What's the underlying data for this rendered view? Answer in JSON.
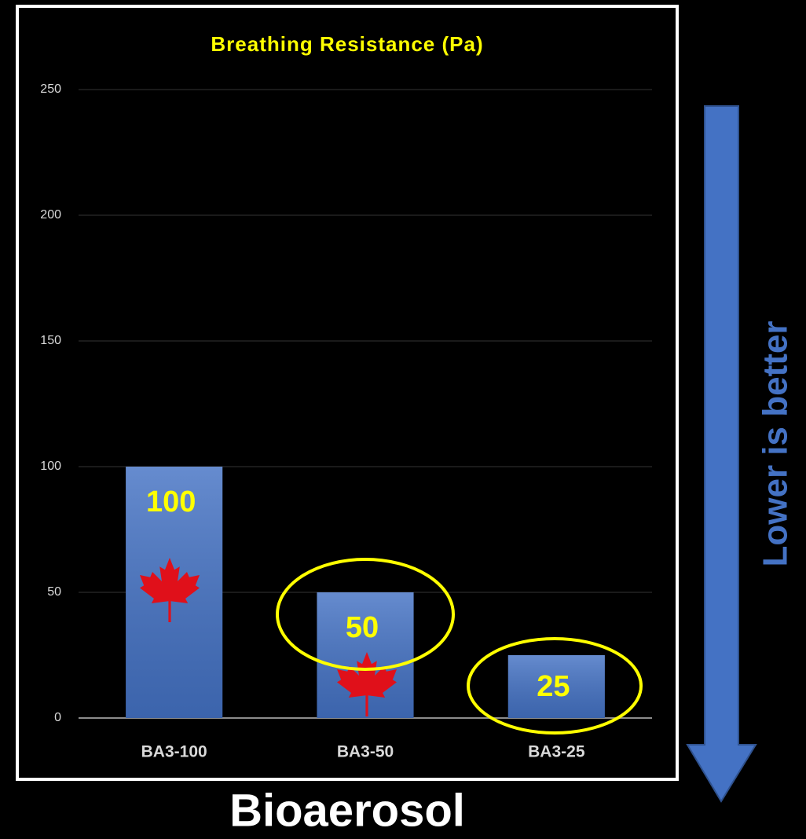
{
  "chart_data": {
    "type": "bar",
    "title": "Breathing Resistance (Pa)",
    "categories": [
      "BA3-100",
      "BA3-50",
      "BA3-25"
    ],
    "values": [
      100,
      50,
      25
    ],
    "color": "#4472c4",
    "ylim": [
      0,
      250
    ],
    "yticks": [
      0,
      50,
      100,
      150,
      200,
      250
    ],
    "grid": true,
    "xlabel": "Bioaerosol",
    "annotation": "Lower is better"
  }
}
